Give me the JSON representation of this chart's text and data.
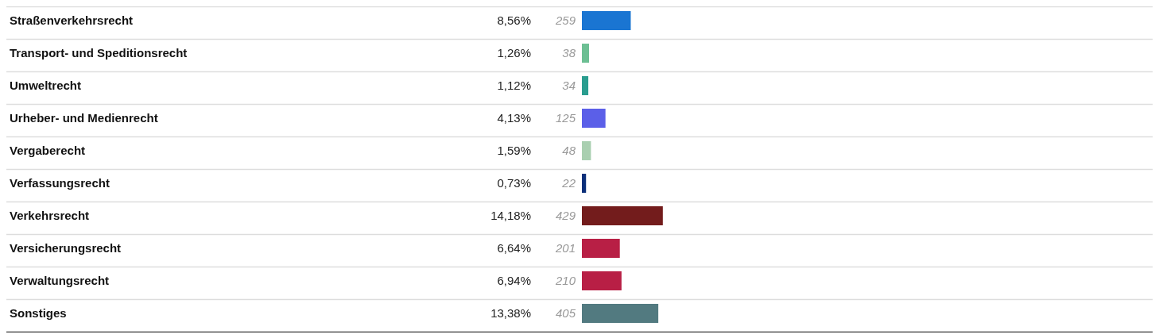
{
  "chart_data": {
    "type": "bar",
    "orientation": "horizontal",
    "data_labels": true,
    "xlim": [
      0,
      3025
    ],
    "categories": [
      "Straßenverkehrsrecht",
      "Transport- und Speditionsrecht",
      "Umweltrecht",
      "Urheber- und Medienrecht",
      "Vergaberecht",
      "Verfassungsrecht",
      "Verkehrsrecht",
      "Versicherungsrecht",
      "Verwaltungsrecht",
      "Sonstiges"
    ],
    "values": [
      259,
      38,
      34,
      125,
      48,
      22,
      429,
      201,
      210,
      405
    ],
    "colors": [
      "#1a75d2",
      "#6cbf93",
      "#2a9d8f",
      "#5b5fe8",
      "#a9cfb0",
      "#0b2f7a",
      "#731c1c",
      "#b81f45",
      "#b81f45",
      "#527a80"
    ],
    "annotations": [
      "8,56%",
      "1,26%",
      "1,12%",
      "4,13%",
      "1,59%",
      "0,73%",
      "14,18%",
      "6,64%",
      "6,94%",
      "13,38%"
    ]
  }
}
